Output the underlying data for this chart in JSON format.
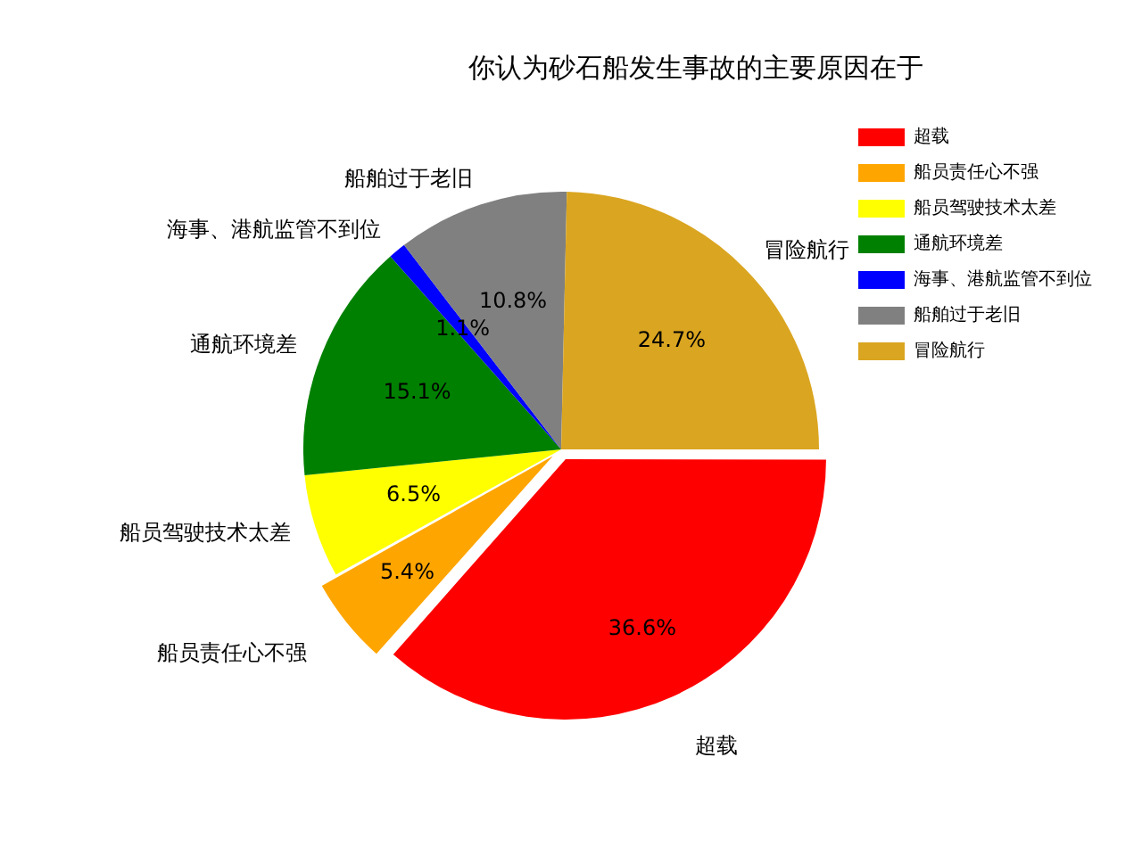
{
  "chart_data": {
    "type": "pie",
    "title": "你认为砂石船发生事故的主要原因在于",
    "categories": [
      "超载",
      "船员责任心不强",
      "船员驾驶技术太差",
      "通航环境差",
      "海事、港航监管不到位",
      "船舶过于老旧",
      "冒险航行"
    ],
    "values": [
      36.6,
      5.4,
      6.5,
      15.1,
      1.1,
      10.8,
      24.7
    ],
    "value_labels": [
      "36.6%",
      "5.4%",
      "6.5%",
      "15.1%",
      "1.1%",
      "10.8%",
      "24.7%"
    ],
    "colors": [
      "#ff0000",
      "#ffa500",
      "#ffff00",
      "#008000",
      "#0000ff",
      "#808080",
      "#daa520"
    ],
    "legend": "top right"
  }
}
